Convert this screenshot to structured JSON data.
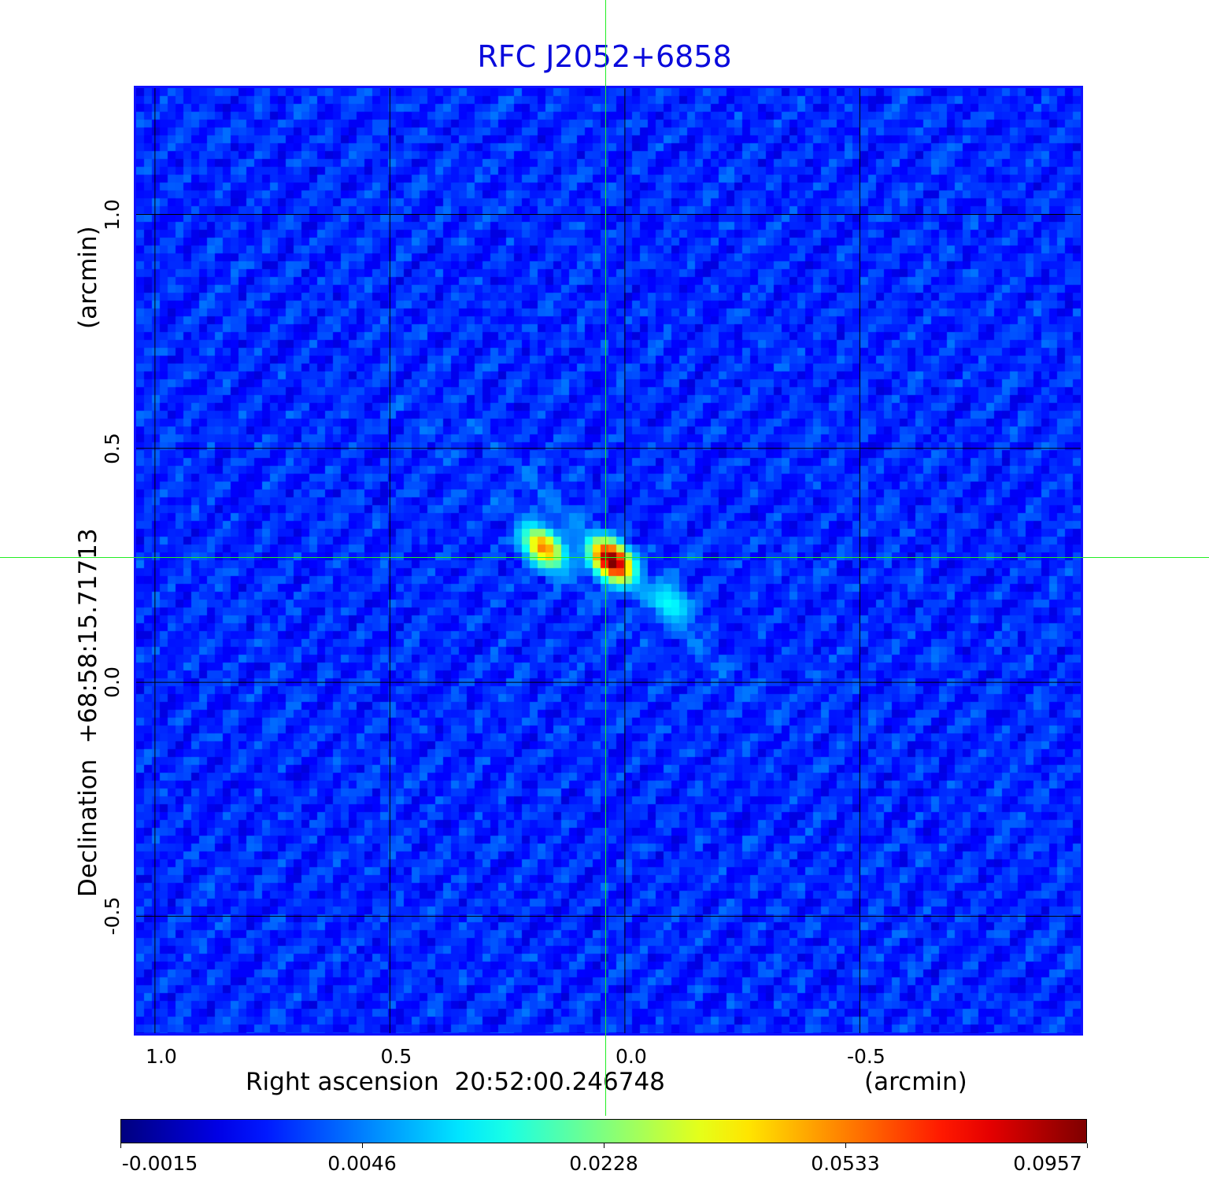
{
  "chart_data": {
    "type": "heatmap",
    "title": "RFC J2052+6858",
    "xlabel": "Right ascension  20:52:00.246748",
    "xunit": "(arcmin)",
    "ylabel": "Declination  +68:58:15.71713",
    "yunit": "(arcmin)",
    "x_ticks": [
      "1.0",
      "0.5",
      "0.0",
      "-0.5"
    ],
    "x_tick_values": [
      1.0,
      0.5,
      0.0,
      -0.5
    ],
    "y_ticks": [
      "1.0",
      "0.5",
      "0.0",
      "-0.5"
    ],
    "y_tick_values": [
      1.0,
      0.5,
      0.0,
      -0.5
    ],
    "xlim": [
      1.04,
      -0.97
    ],
    "ylim": [
      -0.75,
      1.27
    ],
    "grid": true,
    "colormap": "jet",
    "colorbar": {
      "location": "bottom",
      "tick_labels": [
        "-0.0015",
        "0.0046",
        "0.0228",
        "0.0533",
        "0.0957"
      ],
      "tick_values": [
        -0.0015,
        0.0046,
        0.0228,
        0.0533,
        0.0957
      ]
    },
    "crosshair": {
      "x": 0.042,
      "y": 0.267,
      "color": "#22ee22"
    },
    "background_level": 0.0025,
    "sources": [
      {
        "x": 0.028,
        "y": 0.26,
        "peak": 0.0957
      },
      {
        "x": 0.173,
        "y": 0.288,
        "peak": 0.05
      },
      {
        "x": -0.097,
        "y": 0.172,
        "peak": 0.012
      }
    ],
    "colors": {
      "title": "#0a0adc",
      "frame": "#1010ff"
    }
  }
}
